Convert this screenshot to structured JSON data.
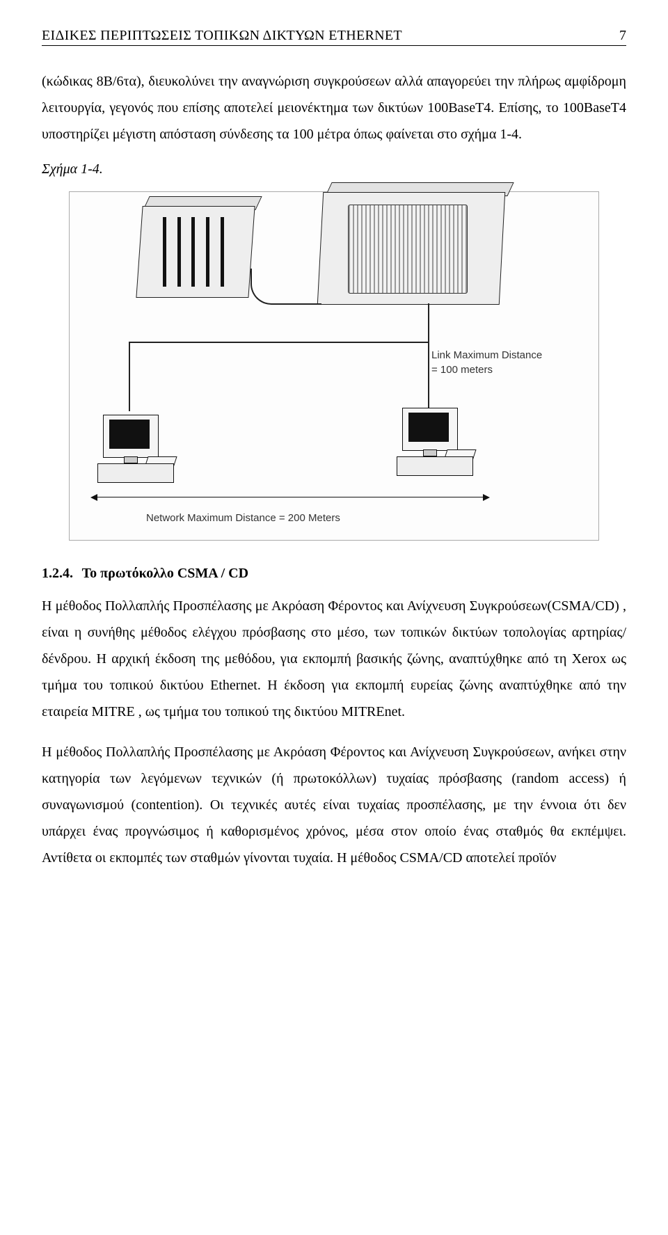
{
  "header": {
    "title": "ΕΙΔΙΚΕΣ ΠΕΡΙΠΤΩΣΕΙΣ ΤΟΠΙΚΩΝ ΔΙΚΤΥΩΝ ETHERNET",
    "page_number": "7"
  },
  "paragraph_intro": "(κώδικας 8Β/6τα), διευκολύνει την αναγνώριση συγκρούσεων αλλά απαγορεύει την πλήρως αμφίδρομη λειτουργία, γεγονός που επίσης αποτελεί μειονέκτημα των δικτύων 100BaseT4. Επίσης, το 100BaseT4 υποστηρίζει μέγιστη απόσταση σύνδεσης τα 100 μέτρα όπως φαίνεται στο σχήμα 1-4.",
  "caption_label": "Σχήμα 1-4.",
  "figure": {
    "link_max_text_1": "Link Maximum Distance",
    "link_max_text_2": "= 100 meters",
    "network_max_text": "Network Maximum Distance = 200 Meters",
    "border_color": "#aaaaaa",
    "device_fill": "#eeeeee",
    "line_color": "#222222",
    "screen_color": "#111111",
    "background": "#fdfdfd"
  },
  "section": {
    "number": "1.2.4.",
    "title": "Το πρωτόκολλο CSMA / CD"
  },
  "paragraph_1": "Η μέθοδος Πολλαπλής Προσπέλασης με Ακρόαση Φέροντος και Ανίχνευση Συγκρούσεων(CSMA/CD) , είναι η συνήθης μέθοδος ελέγχου πρόσβασης στο μέσο, των τοπικών δικτύων τοπολογίας αρτηρίας/ δένδρου. Η αρχική έκδοση της μεθόδου, για εκπομπή βασικής ζώνης, αναπτύχθηκε από τη Xerox ως τμήμα του τοπικού δικτύου Ethernet. Η έκδοση για εκπομπή ευρείας ζώνης αναπτύχθηκε από την εταιρεία MITRE , ως τμήμα του τοπικού της δικτύου MITREnet.",
  "paragraph_2": "Η μέθοδος Πολλαπλής Προσπέλασης με Ακρόαση Φέροντος και Ανίχνευση Συγκρούσεων, ανήκει στην κατηγορία των λεγόμενων τεχνικών (ή πρωτοκόλλων) τυχαίας πρόσβασης (random access) ή συναγωνισμού (contention). Οι τεχνικές αυτές είναι τυχαίας προσπέλασης, με την έννοια ότι δεν υπάρχει ένας προγνώσιμος ή καθορισμένος χρόνος, μέσα στον οποίο ένας σταθμός θα εκπέμψει. Αντίθετα οι εκπομπές των σταθμών γίνονται τυχαία. Η μέθοδος CSMA/CD αποτελεί προϊόν"
}
